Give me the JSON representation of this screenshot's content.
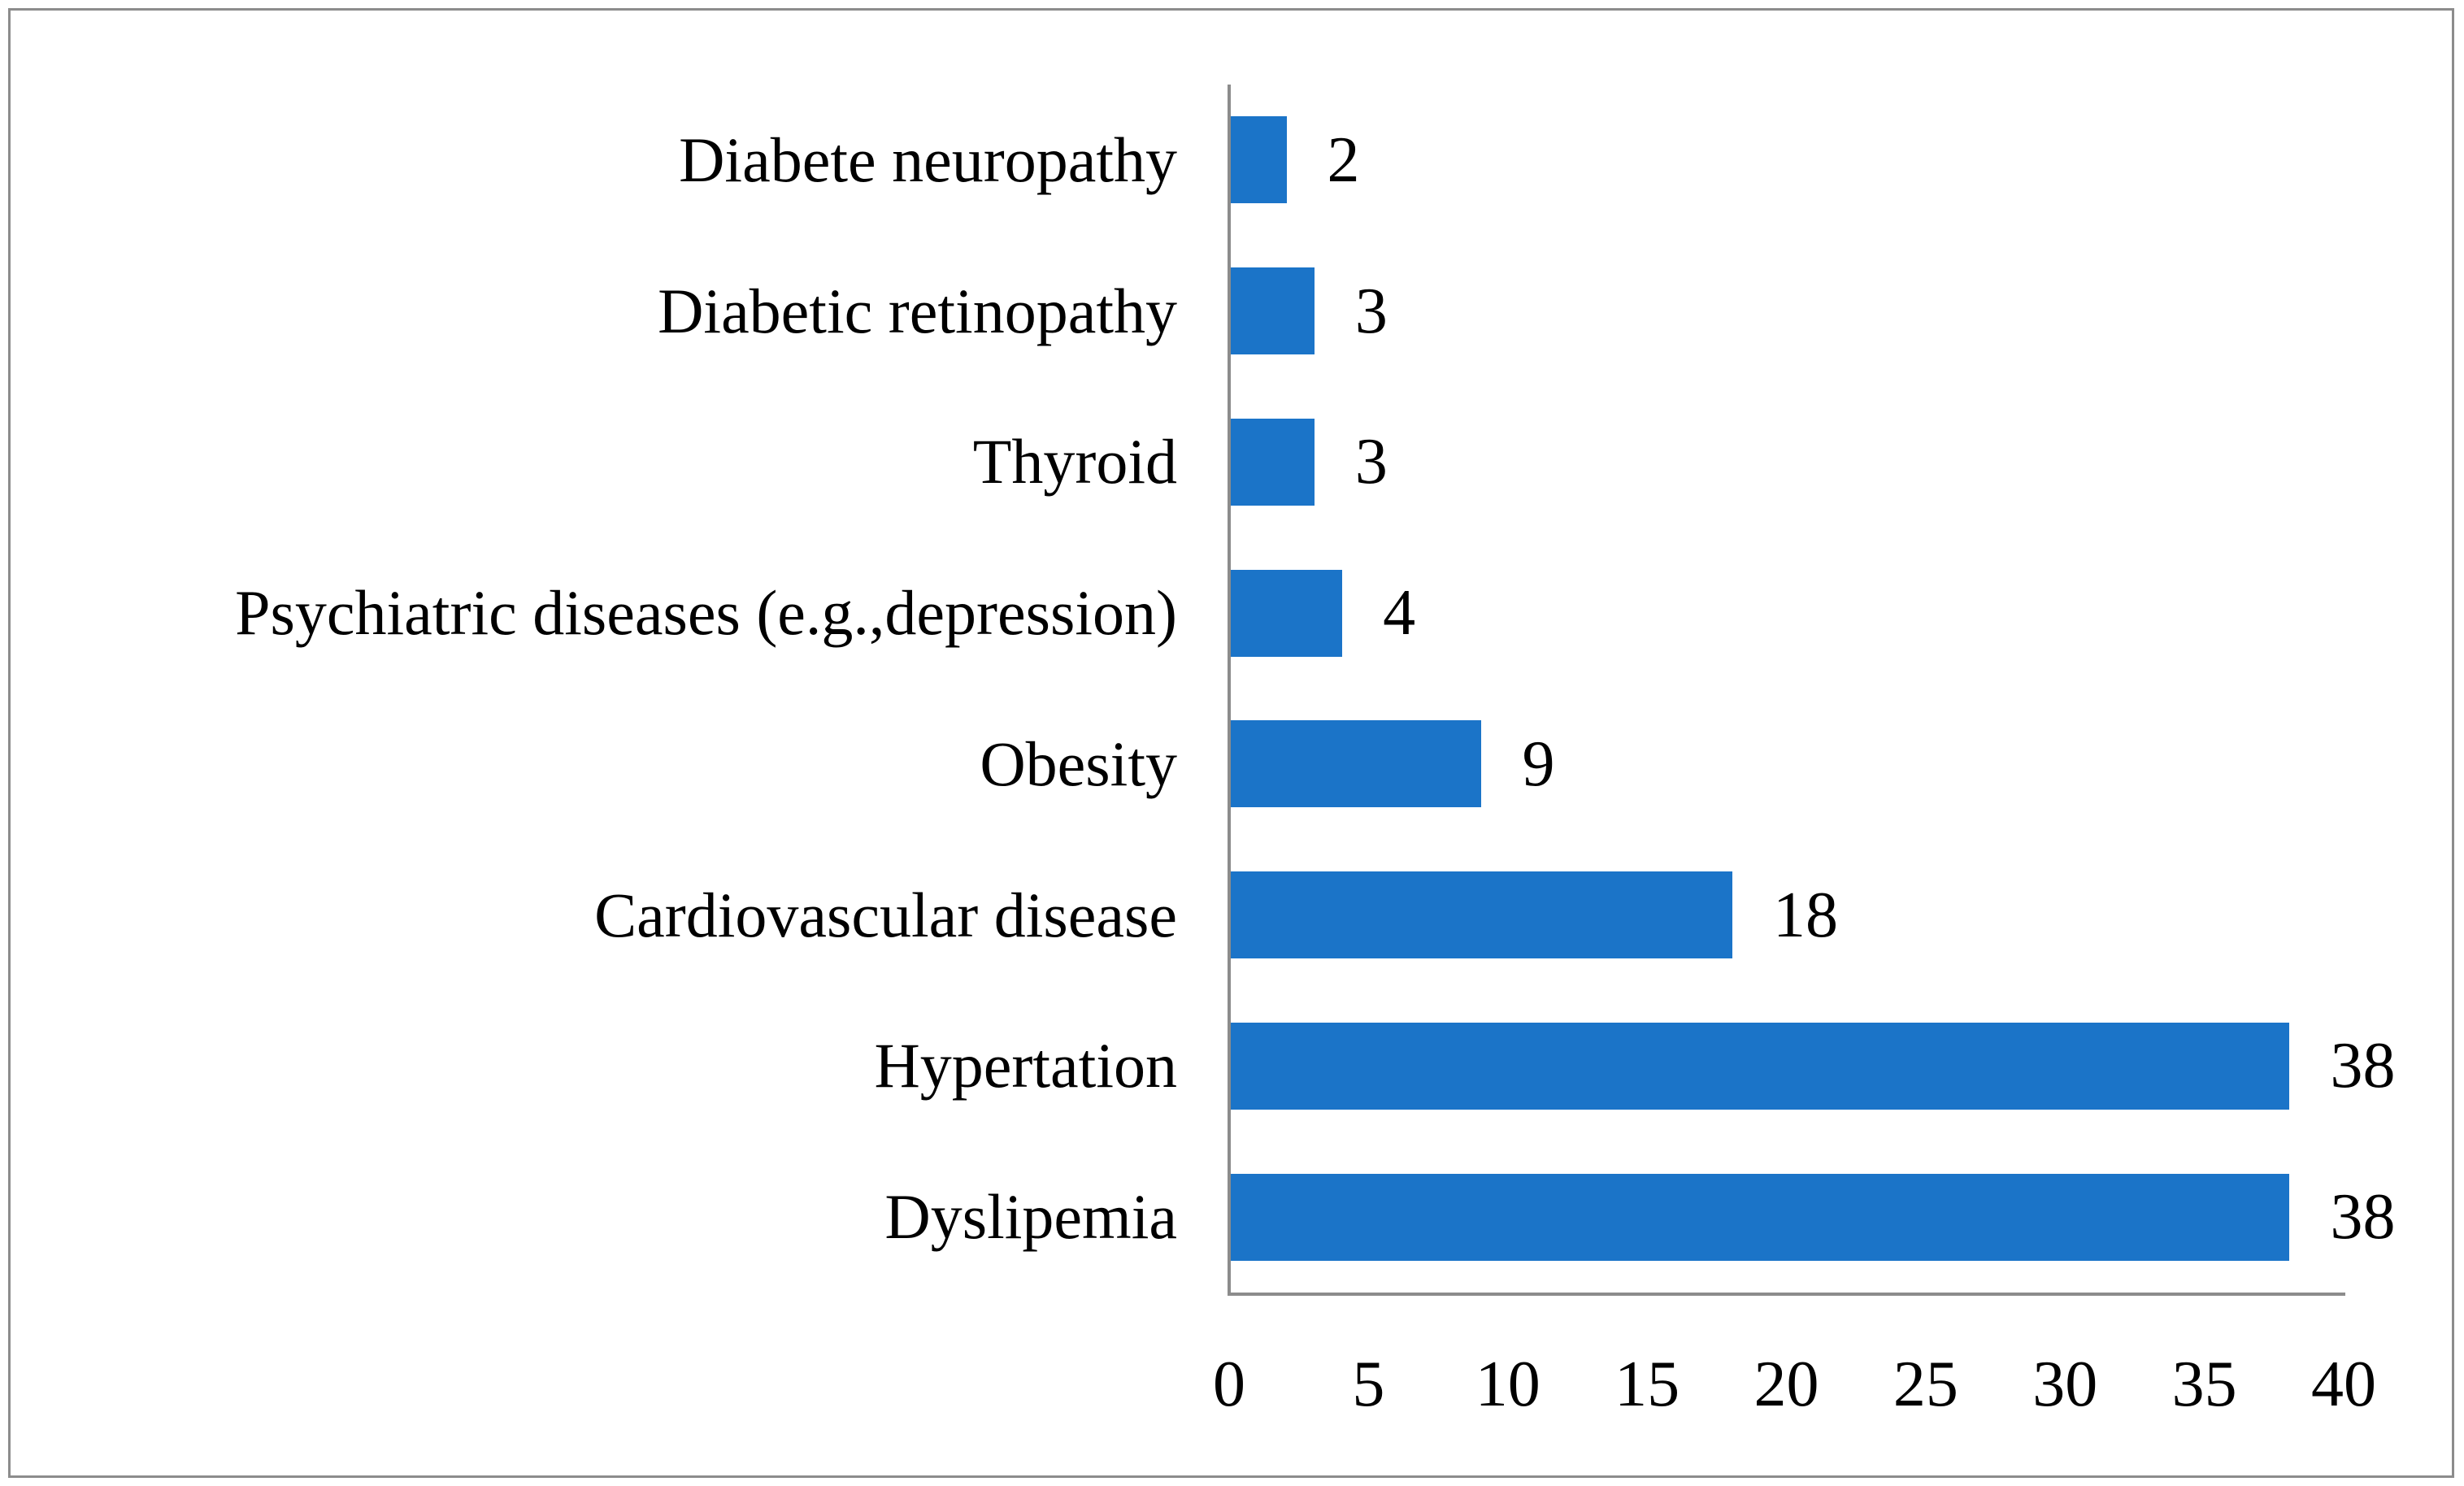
{
  "chart_data": {
    "type": "bar",
    "orientation": "horizontal",
    "title": "",
    "xlabel": "",
    "ylabel": "",
    "categories": [
      "Diabete neuropathy",
      "Diabetic retinopathy",
      "Thyroid",
      "Psychiatric diseases (e.g.,depression)",
      "Obesity",
      "Cardiovascular disease",
      "Hypertation",
      "Dyslipemia"
    ],
    "values": [
      2,
      3,
      3,
      4,
      9,
      18,
      38,
      38
    ],
    "value_labels": [
      "2",
      "3",
      "3",
      "4",
      "9",
      "18",
      "38",
      "38"
    ],
    "x_ticks": [
      0,
      5,
      10,
      15,
      20,
      25,
      30,
      35,
      40
    ],
    "xlim": [
      0,
      40
    ],
    "grid": false,
    "legend": false,
    "data_labels_position": "outside-end",
    "colors": {
      "bar_fill": "#1b74c8",
      "axis_line": "#8c8c8c",
      "outer_frame": "#8c8c8c",
      "text": "#000000",
      "background": "#ffffff"
    }
  }
}
